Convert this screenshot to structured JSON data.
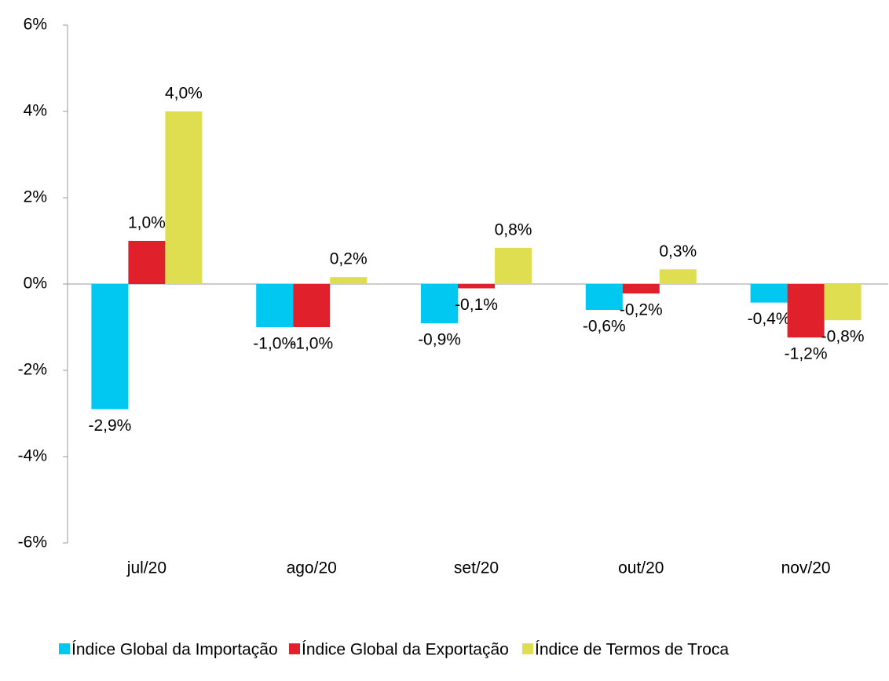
{
  "chart_data": {
    "type": "bar",
    "categories": [
      "jul/20",
      "ago/20",
      "set/20",
      "out/20",
      "nov/20"
    ],
    "series": [
      {
        "name": "Índice Global da Importação",
        "color": "#00c8f0",
        "values": [
          -2.9,
          -1.0,
          -0.91,
          -0.6,
          -0.43
        ],
        "value_labels": [
          "-2,9%",
          "-1,0%",
          "-0,9%",
          "-0,6%",
          "-0,4%"
        ]
      },
      {
        "name": "Índice Global da Exportação",
        "color": "#e0202a",
        "values": [
          1.0,
          -1.0,
          -0.1,
          -0.22,
          -1.24
        ],
        "value_labels": [
          "1,0%",
          "-1,0%",
          "-0,1%",
          "-0,2%",
          "-1,2%"
        ]
      },
      {
        "name": "Índice de Termos de Troca",
        "color": "#dede50",
        "values": [
          4.0,
          0.16,
          0.84,
          0.34,
          -0.84
        ],
        "value_labels": [
          "4,0%",
          "0,2%",
          "0,8%",
          "0,3%",
          "-0,8%"
        ]
      }
    ],
    "ylim": [
      -6,
      6
    ],
    "yticks": [
      {
        "value": -6,
        "label": "-6%"
      },
      {
        "value": -4,
        "label": "-4%"
      },
      {
        "value": -2,
        "label": "-2%"
      },
      {
        "value": 0,
        "label": "0%"
      },
      {
        "value": 2,
        "label": "2%"
      },
      {
        "value": 4,
        "label": "4%"
      },
      {
        "value": 6,
        "label": "6%"
      }
    ],
    "legend": "bottom"
  }
}
